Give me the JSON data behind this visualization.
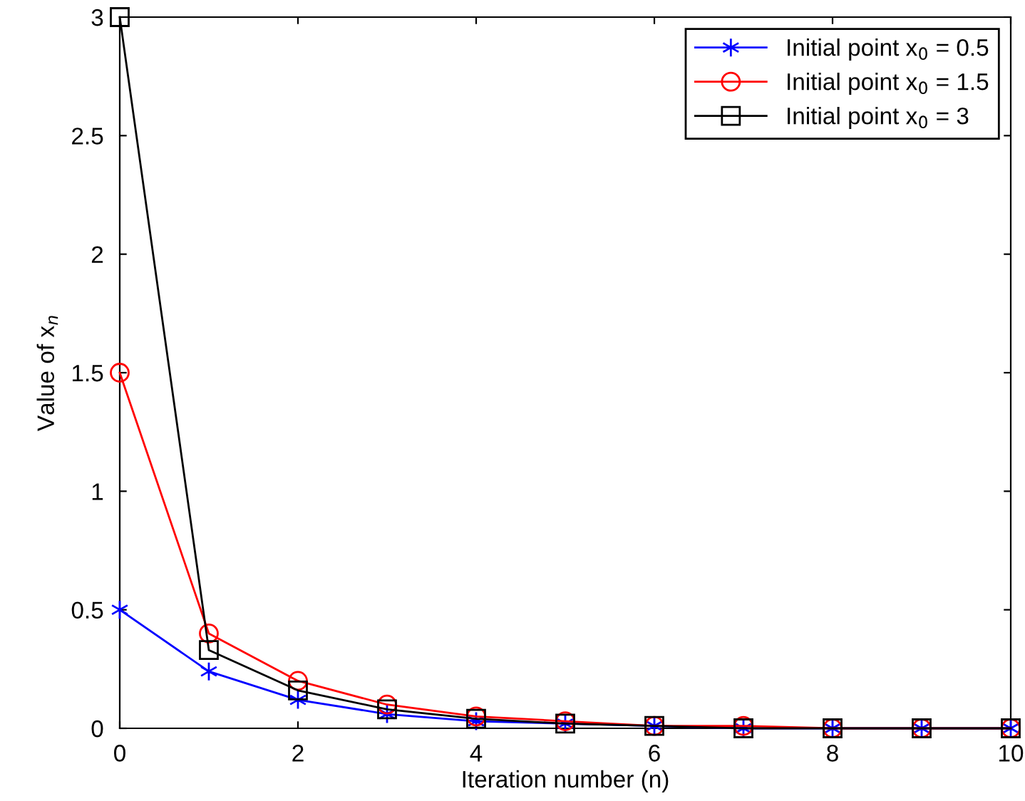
{
  "chart_data": {
    "type": "line",
    "xlabel": "Iteration number (n)",
    "ylabel": "Value of x$_{n}$",
    "x": [
      0,
      1,
      2,
      3,
      4,
      5,
      6,
      7,
      8,
      9,
      10
    ],
    "series": [
      {
        "name": "Initial point x$_{0}$ = 0.5",
        "color": "#0000ff",
        "marker": "cross",
        "values": [
          0.5,
          0.24,
          0.12,
          0.06,
          0.03,
          0.02,
          0.01,
          0,
          0,
          0,
          0
        ]
      },
      {
        "name": "Initial point x$_{0}$ = 1.5",
        "color": "#ff0000",
        "marker": "circle",
        "values": [
          1.5,
          0.4,
          0.2,
          0.1,
          0.05,
          0.03,
          0.01,
          0.01,
          0,
          0,
          0
        ]
      },
      {
        "name": "Initial point x$_{0}$ = 3",
        "color": "#000000",
        "marker": "square",
        "values": [
          3,
          0.33,
          0.16,
          0.08,
          0.04,
          0.02,
          0.01,
          0,
          0,
          0,
          0
        ]
      }
    ],
    "xlim": [
      0,
      10
    ],
    "xticks": [
      0,
      2,
      4,
      6,
      8,
      10
    ],
    "ylim": [
      0,
      3
    ],
    "yticks": [
      0,
      0.5,
      1,
      1.5,
      2,
      2.5,
      3
    ],
    "grid": false,
    "legend": "top right",
    "line_style": "solid"
  }
}
